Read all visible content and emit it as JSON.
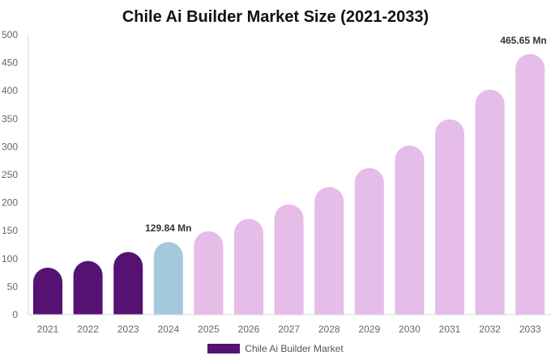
{
  "colors": {
    "historical": "#561273",
    "base_year": "#a5c9dc",
    "forecast": "#e6bce8",
    "axis_line": "#d7d7d7",
    "text_dark": "#111111",
    "text_muted": "#666666"
  },
  "chart_data": {
    "type": "bar",
    "title": "Chile Ai Builder Market Size (2021-2033)",
    "xlabel": "",
    "ylabel": "",
    "categories": [
      "2021",
      "2022",
      "2023",
      "2024",
      "2025",
      "2026",
      "2027",
      "2028",
      "2029",
      "2030",
      "2031",
      "2032",
      "2033"
    ],
    "series": [
      {
        "name": "Chile Ai Builder Market",
        "values": [
          84,
          96,
          112,
          129.84,
          149,
          171,
          197,
          228,
          262,
          302,
          349,
          402,
          465.65
        ],
        "bar_colors": [
          "historical",
          "historical",
          "historical",
          "base_year",
          "forecast",
          "forecast",
          "forecast",
          "forecast",
          "forecast",
          "forecast",
          "forecast",
          "forecast",
          "forecast"
        ]
      }
    ],
    "ylim": [
      0,
      500
    ],
    "yticks": [
      "0",
      "50",
      "100",
      "150",
      "200",
      "250",
      "300",
      "350",
      "400",
      "450",
      "500"
    ],
    "data_labels": [
      {
        "index": 3,
        "text": "129.84 Mn"
      },
      {
        "index": 12,
        "text": "465.65 Mn"
      }
    ],
    "grid": false,
    "legend_position": "bottom-center"
  }
}
